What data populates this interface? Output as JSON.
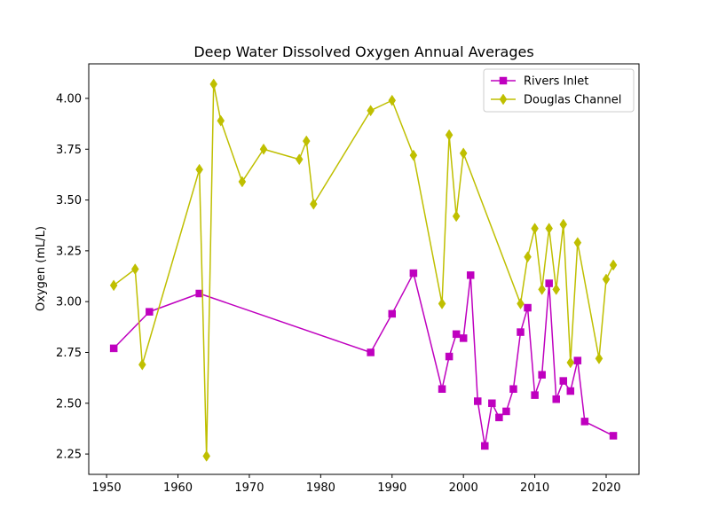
{
  "chart_data": {
    "type": "line",
    "title": "Deep Water Dissolved Oxygen Annual Averages",
    "xlabel": "",
    "ylabel": "Oxygen (mL/L)",
    "xlim": [
      1947.5,
      2024.6
    ],
    "ylim": [
      2.15,
      4.17
    ],
    "xticks": [
      1950,
      1960,
      1970,
      1980,
      1990,
      2000,
      2010,
      2020
    ],
    "yticks": [
      2.25,
      2.5,
      2.75,
      3.0,
      3.25,
      3.5,
      3.75,
      4.0
    ],
    "ytick_labels": [
      "2.25",
      "2.50",
      "2.75",
      "3.00",
      "3.25",
      "3.50",
      "3.75",
      "4.00"
    ],
    "grid": false,
    "legend_position": "top-right",
    "series": [
      {
        "name": "Rivers Inlet",
        "color": "#bf00bf",
        "marker": "square",
        "x": [
          1951,
          1956,
          1963,
          1987,
          1990,
          1993,
          1997,
          1998,
          1999,
          2000,
          2001,
          2002,
          2003,
          2004,
          2005,
          2006,
          2007,
          2008,
          2009,
          2010,
          2011,
          2012,
          2013,
          2014,
          2015,
          2016,
          2017,
          2021
        ],
        "y": [
          2.77,
          2.95,
          3.04,
          2.75,
          2.94,
          3.14,
          2.57,
          2.73,
          2.84,
          2.82,
          3.13,
          2.51,
          2.29,
          2.5,
          2.43,
          2.46,
          2.57,
          2.85,
          2.97,
          2.54,
          2.64,
          3.09,
          2.52,
          2.61,
          2.56,
          2.71,
          2.41,
          2.34
        ]
      },
      {
        "name": "Douglas Channel",
        "color": "#bfbf00",
        "marker": "diamond",
        "x": [
          1951,
          1954,
          1955,
          1963,
          1964,
          1965,
          1966,
          1969,
          1972,
          1977,
          1978,
          1979,
          1987,
          1990,
          1993,
          1997,
          1998,
          1999,
          2000,
          2008,
          2009,
          2010,
          2011,
          2012,
          2013,
          2014,
          2015,
          2016,
          2019,
          2020,
          2021
        ],
        "y": [
          3.08,
          3.16,
          2.69,
          3.65,
          2.24,
          4.07,
          3.89,
          3.59,
          3.75,
          3.7,
          3.79,
          3.48,
          3.94,
          3.99,
          3.72,
          2.99,
          3.82,
          3.42,
          3.73,
          2.99,
          3.22,
          3.36,
          3.06,
          3.36,
          3.06,
          3.38,
          2.7,
          3.29,
          2.72,
          3.11,
          3.18
        ]
      }
    ]
  }
}
